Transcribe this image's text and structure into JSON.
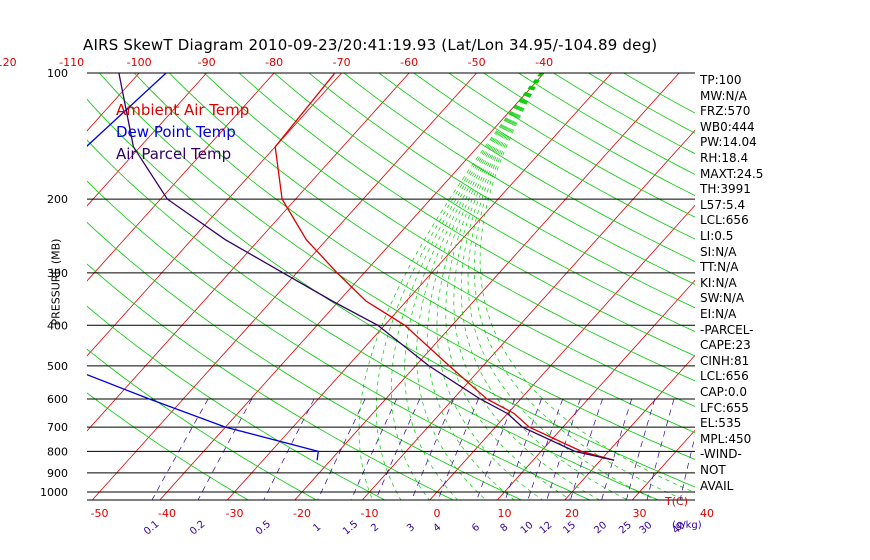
{
  "window": {
    "title": "AIRS SkewT Diagram 2010-09-23/20:41:19.93 (Lat/Lon 34.95/-104.89 deg)"
  },
  "colors": {
    "ambient": "#dd0000",
    "dewpoint": "#0000dd",
    "parcel": "#330066",
    "isotherm": "#dd0000",
    "dry_adiabat": "#00cc00",
    "moist_adiabat": "#00cc00",
    "mixing_ratio": "#330099",
    "isobar": "#000000"
  },
  "legend": [
    {
      "label": "Ambient Air Temp",
      "color": "#dd0000"
    },
    {
      "label": "Dew Point Temp",
      "color": "#0000dd"
    },
    {
      "label": "Air Parcel Temp",
      "color": "#330066"
    }
  ],
  "stats": [
    "TP:100",
    "MW:N/A",
    "FRZ:570",
    "WB0:444",
    "PW:14.04",
    "RH:18.4",
    "MAXT:24.5",
    "TH:3991",
    "L57:5.4",
    "LCL:656",
    "LI:0.5",
    "SI:N/A",
    "TT:N/A",
    "KI:N/A",
    "SW:N/A",
    "EI:N/A",
    "-PARCEL-",
    "CAPE:23",
    "CINH:81",
    "LCL:656",
    "CAP:0.0",
    "LFC:655",
    "EL:535",
    "MPL:450",
    "-WIND-",
    "NOT",
    "AVAIL"
  ],
  "chart_data": {
    "type": "line",
    "title": "AIRS SkewT Diagram 2010-09-23/20:41:19.93 (Lat/Lon 34.95/-104.89 deg)",
    "ylabel": "PRESSURE (MB)",
    "xlabel": "T(C)",
    "ylim": [
      1000,
      100
    ],
    "y_scale": "log",
    "pressure_ticks": [
      "100",
      "200",
      "300",
      "400",
      "500",
      "600",
      "700",
      "800",
      "900",
      "1000"
    ],
    "bottom_temp_ticks": [
      "-50",
      "-40",
      "-30",
      "-20",
      "-10",
      "0",
      "10",
      "20",
      "30",
      "40"
    ],
    "top_temp_ticks": [
      "-120",
      "-110",
      "-100",
      "-90",
      "-80",
      "-70",
      "-60",
      "-50",
      "-40"
    ],
    "bottom_temp_unit": "T(C)",
    "mixing_ratio_ticks": [
      "0.1",
      "0.2",
      "0.5",
      "1",
      "1.5",
      "2",
      "3",
      "4",
      "6",
      "8",
      "10",
      "12",
      "15",
      "20",
      "25",
      "30",
      "40"
    ],
    "mixing_ratio_unit": "(g/kg)",
    "series": [
      {
        "name": "Ambient Air Temp",
        "points": [
          [
            100,
            -71
          ],
          [
            150,
            -70
          ],
          [
            200,
            -62
          ],
          [
            250,
            -53
          ],
          [
            300,
            -44
          ],
          [
            350,
            -36
          ],
          [
            400,
            -27
          ],
          [
            500,
            -15
          ],
          [
            600,
            -5
          ],
          [
            650,
            1
          ],
          [
            700,
            5
          ],
          [
            800,
            16
          ],
          [
            840,
            22
          ]
        ]
      },
      {
        "name": "Dew Point Temp",
        "points": [
          [
            100,
            -96
          ],
          [
            150,
            -98
          ],
          [
            200,
            -103
          ],
          [
            250,
            -103
          ],
          [
            300,
            -99
          ],
          [
            400,
            -89
          ],
          [
            500,
            -72
          ],
          [
            600,
            -55
          ],
          [
            700,
            -40
          ],
          [
            800,
            -23
          ],
          [
            840,
            -22
          ]
        ]
      },
      {
        "name": "Air Parcel Temp",
        "points": [
          [
            100,
            -103
          ],
          [
            150,
            -91
          ],
          [
            200,
            -79
          ],
          [
            250,
            -65
          ],
          [
            300,
            -52
          ],
          [
            350,
            -41
          ],
          [
            400,
            -31
          ],
          [
            500,
            -18
          ],
          [
            600,
            -6
          ],
          [
            650,
            0
          ],
          [
            700,
            4
          ],
          [
            800,
            15
          ],
          [
            840,
            22
          ]
        ]
      }
    ]
  }
}
